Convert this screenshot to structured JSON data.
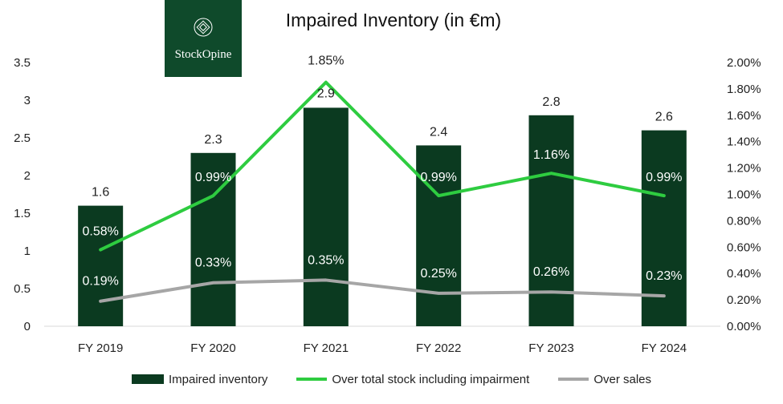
{
  "header": {
    "title": "Impaired Inventory (in €m)"
  },
  "logo": {
    "text": "StockOpine",
    "mark": "diamond-logo-icon"
  },
  "colors": {
    "bar": "#0b3a20",
    "green_line": "#2ecc40",
    "grey_line": "#a6a6a6",
    "axis": "#d9d9d9",
    "logo_bg": "#0f4a2b"
  },
  "chart_data": {
    "type": "bar",
    "title": "Impaired Inventory (in €m)",
    "categories": [
      "FY 2019",
      "FY 2020",
      "FY 2021",
      "FY 2022",
      "FY 2023",
      "FY 2024"
    ],
    "y_left": {
      "range": [
        0,
        3.5
      ],
      "ticks": [
        "0",
        "0.5",
        "1",
        "1.5",
        "2",
        "2.5",
        "3",
        "3.5"
      ]
    },
    "y_right": {
      "range": [
        0,
        2.0
      ],
      "ticks": [
        "0.00%",
        "0.20%",
        "0.40%",
        "0.60%",
        "0.80%",
        "1.00%",
        "1.20%",
        "1.40%",
        "1.60%",
        "1.80%",
        "2.00%"
      ]
    },
    "series": [
      {
        "name": "Impaired inventory",
        "type": "bar",
        "axis": "left",
        "values": [
          1.6,
          2.3,
          2.9,
          2.4,
          2.8,
          2.6
        ],
        "labels": [
          "1.6",
          "2.3",
          "2.9",
          "2.4",
          "2.8",
          "2.6"
        ]
      },
      {
        "name": "Over total stock including impairment",
        "type": "line",
        "axis": "right",
        "values": [
          0.58,
          0.99,
          1.85,
          0.99,
          1.16,
          0.99
        ],
        "labels": [
          "0.58%",
          "0.99%",
          "1.85%",
          "0.99%",
          "1.16%",
          "0.99%"
        ]
      },
      {
        "name": "Over sales",
        "type": "line",
        "axis": "right",
        "values": [
          0.19,
          0.33,
          0.35,
          0.25,
          0.26,
          0.23
        ],
        "labels": [
          "0.19%",
          "0.33%",
          "0.35%",
          "0.25%",
          "0.26%",
          "0.23%"
        ]
      }
    ],
    "legend": {
      "position": "bottom"
    },
    "grid": false
  }
}
